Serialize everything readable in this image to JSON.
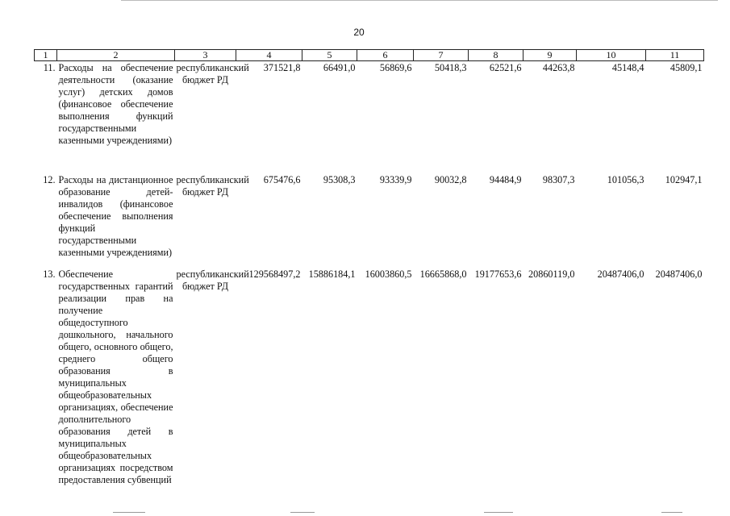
{
  "page_number": "20",
  "table": {
    "headers": [
      "1",
      "2",
      "3",
      "4",
      "5",
      "6",
      "7",
      "8",
      "9",
      "10",
      "11"
    ],
    "rows": [
      {
        "index": "11.",
        "description": "Расходы на обеспечение деятельности (оказание услуг) детских домов (финансовое обеспечение выполнения функций государственными казенными учреждениями)",
        "source": "республиканский бюджет РД",
        "values": [
          "371521,8",
          "66491,0",
          "56869,6",
          "50418,3",
          "62521,6",
          "44263,8",
          "45148,4",
          "45809,1"
        ]
      },
      {
        "index": "12.",
        "description": "Расходы на дистанционное образование детей-инвалидов (финансовое обеспечение выполнения функций государственными казенными учреждениями)",
        "source": "республиканский бюджет РД",
        "values": [
          "675476,6",
          "95308,3",
          "93339,9",
          "90032,8",
          "94484,9",
          "98307,3",
          "101056,3",
          "102947,1"
        ]
      },
      {
        "index": "13.",
        "description": "Обеспечение государственных гарантий реализации прав на получение общедоступного дошкольного, начального общего, основного общего, среднего общего образования в муниципальных общеобразовательных организациях, обеспечение дополнительного образования детей в муниципальных общеобразовательных организациях посредством предоставления субвенций",
        "source": "республиканский бюджет РД",
        "values": [
          "129568497,2",
          "15886184,1",
          "16003860,5",
          "16665868,0",
          "19177653,6",
          "20860119,0",
          "20487406,0",
          "20487406,0"
        ]
      }
    ]
  }
}
